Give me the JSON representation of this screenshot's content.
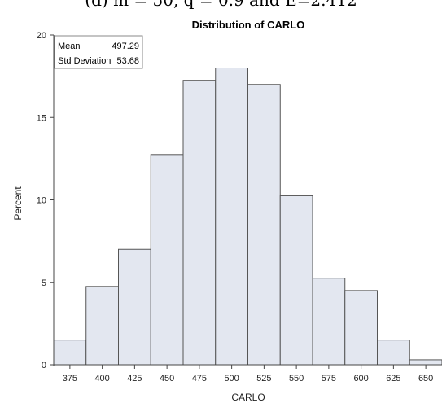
{
  "caption": "(d) m = 50, q = 0.9 and E=2.412",
  "chart_data": {
    "type": "bar",
    "title": "Distribution of CARLO",
    "xlabel": "CARLO",
    "ylabel": "Percent",
    "ylim": [
      0,
      20
    ],
    "yticks": [
      0,
      5,
      10,
      15,
      20
    ],
    "xticks": [
      375,
      400,
      425,
      450,
      475,
      500,
      525,
      550,
      575,
      600,
      625,
      650
    ],
    "bin_width": 25,
    "bin_starts": [
      362.5,
      387.5,
      412.5,
      437.5,
      462.5,
      487.5,
      512.5,
      537.5,
      562.5,
      587.5,
      612.5,
      637.5
    ],
    "values": [
      1.5,
      4.75,
      7.0,
      12.75,
      17.25,
      18.0,
      17.0,
      10.25,
      5.25,
      4.5,
      1.5,
      0.3
    ],
    "bar_fill": "#e3e7f0",
    "bar_stroke": "#555555",
    "grid": false,
    "inset": {
      "mean_label": "Mean",
      "mean_value": "497.29",
      "sd_label": "Std Deviation",
      "sd_value": "53.68"
    }
  }
}
